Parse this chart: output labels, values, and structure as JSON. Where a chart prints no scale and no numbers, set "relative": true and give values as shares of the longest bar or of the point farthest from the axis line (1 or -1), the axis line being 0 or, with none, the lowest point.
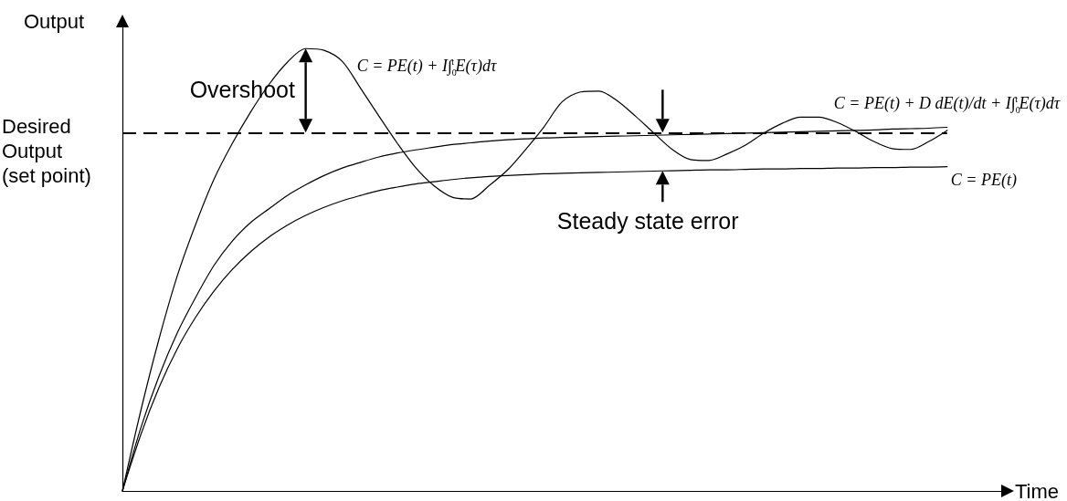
{
  "chart_data": {
    "type": "line",
    "relative": true,
    "xlabel": "Time",
    "ylabel": "Output",
    "categories": [
      null,
      null,
      null,
      null,
      null,
      null,
      null,
      null,
      null,
      null,
      null,
      null,
      null,
      null,
      null,
      null,
      null,
      null,
      null,
      null,
      null,
      null,
      null,
      null,
      null,
      null,
      null,
      null,
      null,
      null,
      null,
      null,
      null,
      null,
      null,
      null,
      null,
      null,
      null,
      null,
      null,
      null,
      null,
      null,
      null,
      null,
      null,
      null,
      null
    ],
    "series": [
      {
        "name": "C = PE(t) + I∫$_{0}$$^{t}$E(τ)dτ",
        "color": "#000000",
        "values": [
          0,
          0.181,
          0.344,
          0.487,
          0.603,
          0.705,
          0.786,
          0.857,
          0.919,
          0.969,
          1,
          0.996,
          0.971,
          0.91,
          0.847,
          0.786,
          0.731,
          0.69,
          0.664,
          0.66,
          0.69,
          0.725,
          0.772,
          0.823,
          0.88,
          0.902,
          0.904,
          0.882,
          0.847,
          0.809,
          0.772,
          0.749,
          0.747,
          0.762,
          0.782,
          0.809,
          0.831,
          0.845,
          0.845,
          0.833,
          0.813,
          0.79,
          0.774,
          0.772,
          0.79,
          0.815,
          null,
          null,
          null
        ]
      },
      {
        "name": "C = PE(t) + D dE(t)/dt + I∫$_{0}$$^{t}$E(τ)dτ",
        "color": "#000000",
        "values": [
          0,
          0.142,
          0.26,
          0.358,
          0.438,
          0.51,
          0.565,
          0.607,
          0.638,
          0.668,
          0.692,
          0.713,
          0.73,
          0.743,
          0.755,
          0.764,
          0.771,
          0.777,
          0.783,
          0.787,
          0.791,
          0.794,
          0.796,
          0.798,
          0.799,
          0.8,
          0.801,
          0.802,
          0.803,
          0.804,
          0.805,
          0.806,
          0.807,
          0.808,
          0.809,
          0.81,
          0.811,
          0.812,
          0.813,
          0.814,
          0.815,
          0.816,
          0.818,
          0.819,
          0.82,
          0.822,
          null,
          null,
          null
        ]
      },
      {
        "name": "C = PE(t)",
        "color": "#000000",
        "values": [
          0,
          0.127,
          0.234,
          0.322,
          0.393,
          0.452,
          0.501,
          0.541,
          0.574,
          0.601,
          0.623,
          0.641,
          0.656,
          0.668,
          0.679,
          0.687,
          0.694,
          0.699,
          0.704,
          0.708,
          0.711,
          0.713,
          0.715,
          0.717,
          0.718,
          0.719,
          0.72,
          0.721,
          0.722,
          0.723,
          0.724,
          0.725,
          0.726,
          0.726,
          0.727,
          0.728,
          0.728,
          0.729,
          0.729,
          0.73,
          0.73,
          0.731,
          0.731,
          0.732,
          0.732,
          0.733,
          null,
          null,
          null
        ]
      }
    ],
    "ref_lines": [
      {
        "axis": "y",
        "value": 0.81,
        "label": "Desired Output (set point)",
        "color": "#000000",
        "line_style": "dashed"
      }
    ],
    "annotations": [
      "Overshoot",
      "Steady state error"
    ],
    "grid": false,
    "legend": false,
    "marker": "none"
  }
}
